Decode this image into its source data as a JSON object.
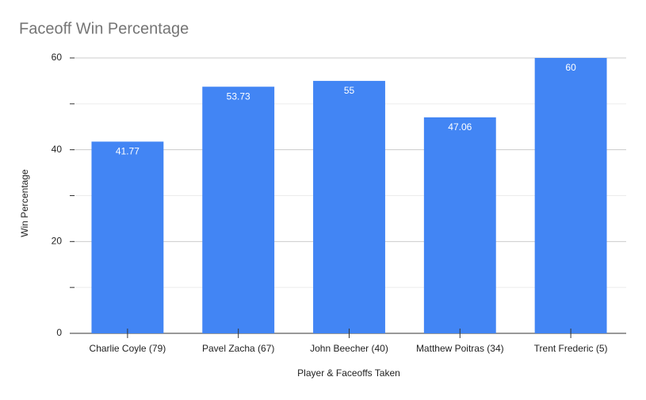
{
  "chart_data": {
    "type": "bar",
    "title": "Faceoff Win Percentage",
    "x_label": "Player & Faceoffs Taken",
    "y_label": "Win Percentage",
    "categories": [
      "Charlie Coyle (79)",
      "Pavel Zacha (67)",
      "John Beecher (40)",
      "Matthew Poitras (34)",
      "Trent Frederic (5)"
    ],
    "values": [
      41.77,
      53.73,
      55,
      47.06,
      60
    ],
    "color": "#4285f4",
    "ylim": [
      0,
      60
    ],
    "yticks": [
      0,
      20,
      40,
      60
    ],
    "yminorticks": [
      10,
      30,
      50
    ],
    "grid": true
  }
}
